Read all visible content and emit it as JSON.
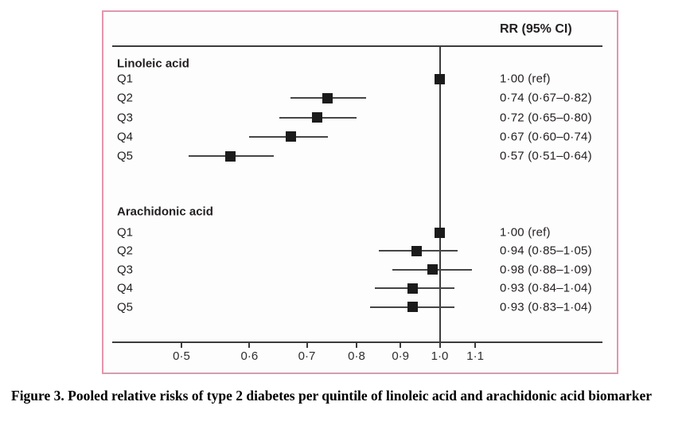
{
  "figure": {
    "caption": "Figure 3. Pooled relative risks of type 2 diabetes per quintile of linoleic acid and arachidonic acid biomarker"
  },
  "chart_data": {
    "type": "forest",
    "column_header": "RR (95% CI)",
    "x_scale": "log",
    "x_axis": {
      "tick_values": [
        0.5,
        0.6,
        0.7,
        0.8,
        0.9,
        1.0,
        1.1
      ],
      "tick_labels": [
        "0·5",
        "0·6",
        "0·7",
        "0·8",
        "0·9",
        "1·0",
        "1·1"
      ],
      "range": [
        0.45,
        1.2
      ]
    },
    "reference_line": 1.0,
    "groups": [
      {
        "label": "Linoleic acid",
        "rows": [
          {
            "label": "Q1",
            "rr": 1.0,
            "lo": null,
            "hi": null,
            "text": "1·00 (ref)"
          },
          {
            "label": "Q2",
            "rr": 0.74,
            "lo": 0.67,
            "hi": 0.82,
            "text": "0·74 (0·67–0·82)"
          },
          {
            "label": "Q3",
            "rr": 0.72,
            "lo": 0.65,
            "hi": 0.8,
            "text": "0·72 (0·65–0·80)"
          },
          {
            "label": "Q4",
            "rr": 0.67,
            "lo": 0.6,
            "hi": 0.74,
            "text": "0·67 (0·60–0·74)"
          },
          {
            "label": "Q5",
            "rr": 0.57,
            "lo": 0.51,
            "hi": 0.64,
            "text": "0·57 (0·51–0·64)"
          }
        ]
      },
      {
        "label": "Arachidonic acid",
        "rows": [
          {
            "label": "Q1",
            "rr": 1.0,
            "lo": null,
            "hi": null,
            "text": "1·00 (ref)"
          },
          {
            "label": "Q2",
            "rr": 0.94,
            "lo": 0.85,
            "hi": 1.05,
            "text": "0·94 (0·85–1·05)"
          },
          {
            "label": "Q3",
            "rr": 0.98,
            "lo": 0.88,
            "hi": 1.09,
            "text": "0·98 (0·88–1·09)"
          },
          {
            "label": "Q4",
            "rr": 0.93,
            "lo": 0.84,
            "hi": 1.04,
            "text": "0·93 (0·84–1·04)"
          },
          {
            "label": "Q5",
            "rr": 0.93,
            "lo": 0.83,
            "hi": 1.04,
            "text": "0·93 (0·83–1·04)"
          }
        ]
      }
    ],
    "colors": {
      "frame_border": "#e794ac",
      "ink": "#231f20",
      "line": "#3c3c3c",
      "marker": "#1b1b1b"
    }
  }
}
